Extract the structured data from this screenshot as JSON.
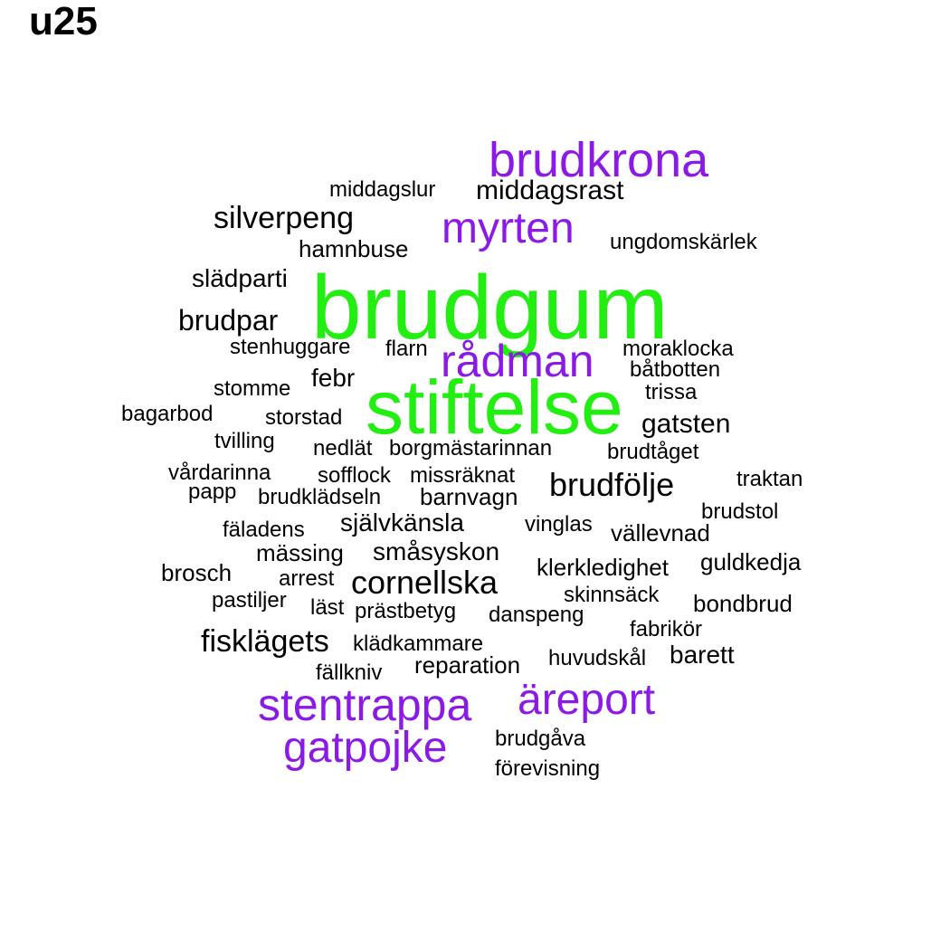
{
  "title": "u25",
  "colors": {
    "tier1": "#22ee11",
    "tier2": "#8c1ae6",
    "tier3": "#000000"
  },
  "words": [
    {
      "text": "brudgum",
      "tier": 1
    },
    {
      "text": "stiftelse",
      "tier": 1
    },
    {
      "text": "brudkrona",
      "tier": 2
    },
    {
      "text": "myrten",
      "tier": 2
    },
    {
      "text": "rådman",
      "tier": 2
    },
    {
      "text": "stentrappa",
      "tier": 2
    },
    {
      "text": "äreport",
      "tier": 2
    },
    {
      "text": "gatpojke",
      "tier": 2
    },
    {
      "text": "middagslur",
      "tier": 3
    },
    {
      "text": "middagsrast",
      "tier": 3
    },
    {
      "text": "silverpeng",
      "tier": 3
    },
    {
      "text": "ungdomskärlek",
      "tier": 3
    },
    {
      "text": "hamnbuse",
      "tier": 3
    },
    {
      "text": "slädparti",
      "tier": 3
    },
    {
      "text": "brudpar",
      "tier": 3
    },
    {
      "text": "stenhuggare",
      "tier": 3
    },
    {
      "text": "flarn",
      "tier": 3
    },
    {
      "text": "moraklocka",
      "tier": 3
    },
    {
      "text": "båtbotten",
      "tier": 3
    },
    {
      "text": "febr",
      "tier": 3
    },
    {
      "text": "stomme",
      "tier": 3
    },
    {
      "text": "trissa",
      "tier": 3
    },
    {
      "text": "bagarbod",
      "tier": 3
    },
    {
      "text": "storstad",
      "tier": 3
    },
    {
      "text": "gatsten",
      "tier": 3
    },
    {
      "text": "tvilling",
      "tier": 3
    },
    {
      "text": "nedlät",
      "tier": 3
    },
    {
      "text": "borgmästarinnan",
      "tier": 3
    },
    {
      "text": "brudtåget",
      "tier": 3
    },
    {
      "text": "vårdarinna",
      "tier": 3
    },
    {
      "text": "sofflock",
      "tier": 3
    },
    {
      "text": "missräknat",
      "tier": 3
    },
    {
      "text": "brudfölje",
      "tier": 3
    },
    {
      "text": "traktan",
      "tier": 3
    },
    {
      "text": "papp",
      "tier": 3
    },
    {
      "text": "brudklädseln",
      "tier": 3
    },
    {
      "text": "barnvagn",
      "tier": 3
    },
    {
      "text": "brudstol",
      "tier": 3
    },
    {
      "text": "fäladens",
      "tier": 3
    },
    {
      "text": "självkänsla",
      "tier": 3
    },
    {
      "text": "vinglas",
      "tier": 3
    },
    {
      "text": "vällevnad",
      "tier": 3
    },
    {
      "text": "mässing",
      "tier": 3
    },
    {
      "text": "småsyskon",
      "tier": 3
    },
    {
      "text": "guldkedja",
      "tier": 3
    },
    {
      "text": "brosch",
      "tier": 3
    },
    {
      "text": "klerkledighet",
      "tier": 3
    },
    {
      "text": "arrest",
      "tier": 3
    },
    {
      "text": "cornellska",
      "tier": 3
    },
    {
      "text": "pastiljer",
      "tier": 3
    },
    {
      "text": "skinnsäck",
      "tier": 3
    },
    {
      "text": "bondbrud",
      "tier": 3
    },
    {
      "text": "läst",
      "tier": 3
    },
    {
      "text": "prästbetyg",
      "tier": 3
    },
    {
      "text": "danspeng",
      "tier": 3
    },
    {
      "text": "fabrikör",
      "tier": 3
    },
    {
      "text": "fisklägets",
      "tier": 3
    },
    {
      "text": "klädkammare",
      "tier": 3
    },
    {
      "text": "barett",
      "tier": 3
    },
    {
      "text": "huvudskål",
      "tier": 3
    },
    {
      "text": "reparation",
      "tier": 3
    },
    {
      "text": "fällkniv",
      "tier": 3
    },
    {
      "text": "brudgåva",
      "tier": 3
    },
    {
      "text": "förevisning",
      "tier": 3
    }
  ]
}
